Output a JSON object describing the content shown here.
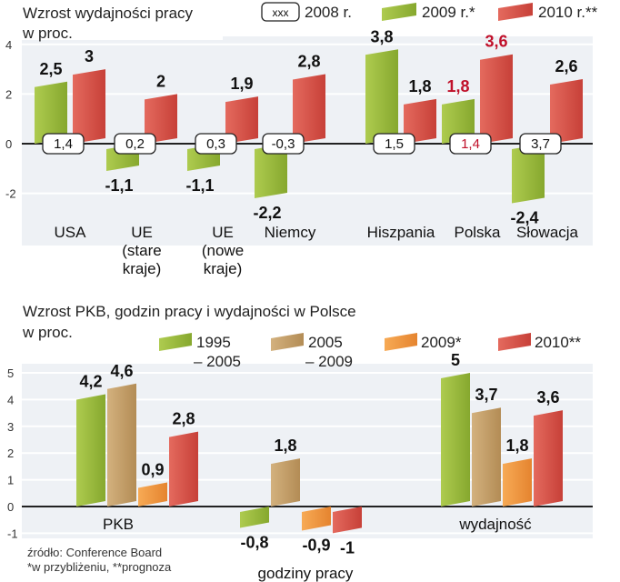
{
  "chart_data": [
    {
      "type": "bar",
      "title": "Wzrost wydajności pracy",
      "subtitle": "w proc.",
      "categories": [
        "USA",
        "UE (stare kraje)",
        "UE (nowe kraje)",
        "Niemcy",
        "Hiszpania",
        "Polska",
        "Słowacja"
      ],
      "category_lines": [
        [
          "USA"
        ],
        [
          "UE",
          "(stare",
          "kraje)"
        ],
        [
          "UE",
          "(nowe",
          "kraje)"
        ],
        [
          "Niemcy"
        ],
        [
          "Hiszpania"
        ],
        [
          "Polska"
        ],
        [
          "Słowacja"
        ]
      ],
      "legend": {
        "box_label": "xxx",
        "s2008": "2008 r.",
        "s2009": "2009 r.*",
        "s2010": "2010 r.**"
      },
      "series": [
        {
          "name": "2008 r.",
          "values": [
            1.4,
            0.2,
            0.3,
            -0.3,
            1.5,
            1.4,
            3.7
          ],
          "labels": [
            "1,4",
            "0,2",
            "0,3",
            "-0,3",
            "1,5",
            "1,4",
            "3,7"
          ],
          "style": "box"
        },
        {
          "name": "2009 r.*",
          "values": [
            2.5,
            -1.1,
            -1.1,
            -2.2,
            3.8,
            1.8,
            -2.4
          ],
          "labels": [
            "2,5",
            "-1,1",
            "-1,1",
            "-2,2",
            "3,8",
            "1,8",
            "-2,4"
          ],
          "color": "#9bbb3c"
        },
        {
          "name": "2010 r.**",
          "values": [
            3,
            2,
            1.9,
            2.8,
            1.8,
            3.6,
            2.6
          ],
          "labels": [
            "3",
            "2",
            "1,9",
            "2,8",
            "1,8",
            "3,6",
            "2,6"
          ],
          "color": "#d9544d"
        }
      ],
      "highlight_category": "Polska",
      "highlight_color": "#c0102a",
      "yticks": [
        4,
        2,
        0,
        -2
      ],
      "ytick_labels": [
        "4",
        "2",
        "0",
        "-2"
      ],
      "ylim": [
        -2.5,
        4.2
      ]
    },
    {
      "type": "bar",
      "title": "Wzrost PKB, godzin pracy i wydajności w Polsce",
      "subtitle": "w proc.",
      "categories": [
        "PKB",
        "godziny pracy",
        "wydajność"
      ],
      "legend": {
        "s1": [
          "1995",
          "– 2005"
        ],
        "s2": [
          "2005",
          "– 2009"
        ],
        "s3": "2009*",
        "s4": "2010**"
      },
      "series": [
        {
          "name": "1995–2005",
          "values": [
            4.2,
            -0.8,
            5
          ],
          "labels": [
            "4,2",
            "-0,8",
            "5"
          ],
          "color": "#9bbb3c"
        },
        {
          "name": "2005–2009",
          "values": [
            4.6,
            1.8,
            3.7
          ],
          "labels": [
            "4,6",
            "1,8",
            "3,7"
          ],
          "color": "#c4a06a"
        },
        {
          "name": "2009*",
          "values": [
            0.9,
            -0.9,
            1.8
          ],
          "labels": [
            "0,9",
            "-0,9",
            "1,8"
          ],
          "color": "#f0963e"
        },
        {
          "name": "2010**",
          "values": [
            2.8,
            -1,
            3.6
          ],
          "labels": [
            "2,8",
            "-1",
            "3,6"
          ],
          "color": "#d9544d"
        }
      ],
      "yticks": [
        5,
        4,
        3,
        2,
        1,
        0,
        -1
      ],
      "ytick_labels": [
        "5",
        "4",
        "3",
        "2",
        "1",
        "0",
        "-1"
      ],
      "ylim": [
        -1.3,
        5.4
      ]
    }
  ],
  "footnotes": {
    "source": "źródło: Conference Board",
    "notes": "*w przybliżeniu, **prognoza"
  }
}
